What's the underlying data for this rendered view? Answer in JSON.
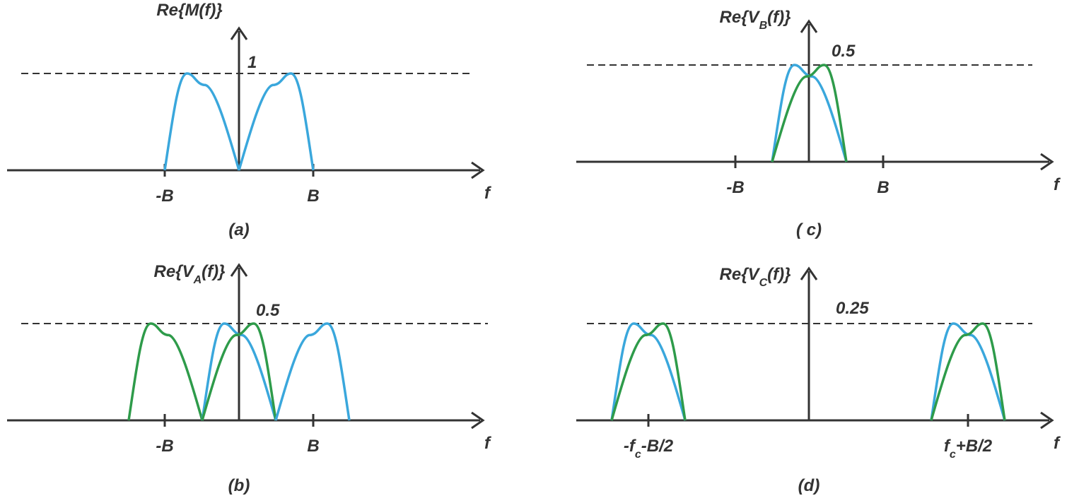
{
  "panels": [
    {
      "y_label": [
        "Re{M(f)}"
      ],
      "level": "1",
      "ticks": [
        [
          "-B"
        ],
        [
          "B"
        ]
      ],
      "x_label": "f",
      "caption": "(a)"
    },
    {
      "y_label": [
        "Re{V",
        "A",
        "(f)}"
      ],
      "level": "0.5",
      "ticks": [
        [
          "-B"
        ],
        [
          "B"
        ]
      ],
      "x_label": "f",
      "caption": "(b)"
    },
    {
      "y_label": [
        "Re{V",
        "B",
        "(f)}"
      ],
      "level": "0.5",
      "ticks": [
        [
          "-B"
        ],
        [
          "B"
        ]
      ],
      "x_label": "f",
      "caption": "( c)"
    },
    {
      "y_label": [
        "Re{V",
        "C",
        "(f)}"
      ],
      "level": "0.25",
      "ticks": [
        [
          "-f",
          "c",
          "-B/2"
        ],
        [
          "f",
          "c",
          "+B/2"
        ]
      ],
      "x_label": "f",
      "caption": "(d)"
    }
  ]
}
